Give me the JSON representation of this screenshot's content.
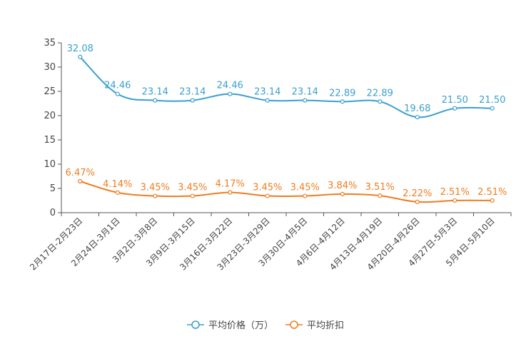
{
  "chart_data": {
    "type": "line",
    "title": "",
    "xlabel": "",
    "ylabel": "",
    "ylim": [
      0,
      35
    ],
    "yticks": [
      0,
      5,
      10,
      15,
      20,
      25,
      30,
      35
    ],
    "categories": [
      "2月17日-2月23日",
      "2月24日-3月1日",
      "3月2日-3月8日",
      "3月9日-3月15日",
      "3月16日-3月22日",
      "3月23日-3月29日",
      "3月30日-4月5日",
      "4月6日-4月12日",
      "4月13日-4月19日",
      "4月20日-4月26日",
      "4月27日-5月3日",
      "5月4日-5月10日"
    ],
    "series": [
      {
        "name": "平均价格（万）",
        "color": "#3a9fd0",
        "values": [
          32.08,
          24.46,
          23.14,
          23.14,
          24.46,
          23.14,
          23.14,
          22.89,
          22.89,
          19.68,
          21.5,
          21.5
        ],
        "labels": [
          "32.08",
          "24.46",
          "23.14",
          "23.14",
          "24.46",
          "23.14",
          "23.14",
          "22.89",
          "22.89",
          "19.68",
          "21.50",
          "21.50"
        ]
      },
      {
        "name": "平均折扣",
        "color": "#f07c1e",
        "values": [
          6.47,
          4.14,
          3.45,
          3.45,
          4.17,
          3.45,
          3.45,
          3.84,
          3.51,
          2.22,
          2.51,
          2.51
        ],
        "labels": [
          "6.47%",
          "4.14%",
          "3.45%",
          "3.45%",
          "4.17%",
          "3.45%",
          "3.45%",
          "3.84%",
          "3.51%",
          "2.22%",
          "2.51%",
          "2.51%"
        ]
      }
    ],
    "legend_position": "bottom-center",
    "grid": false
  }
}
